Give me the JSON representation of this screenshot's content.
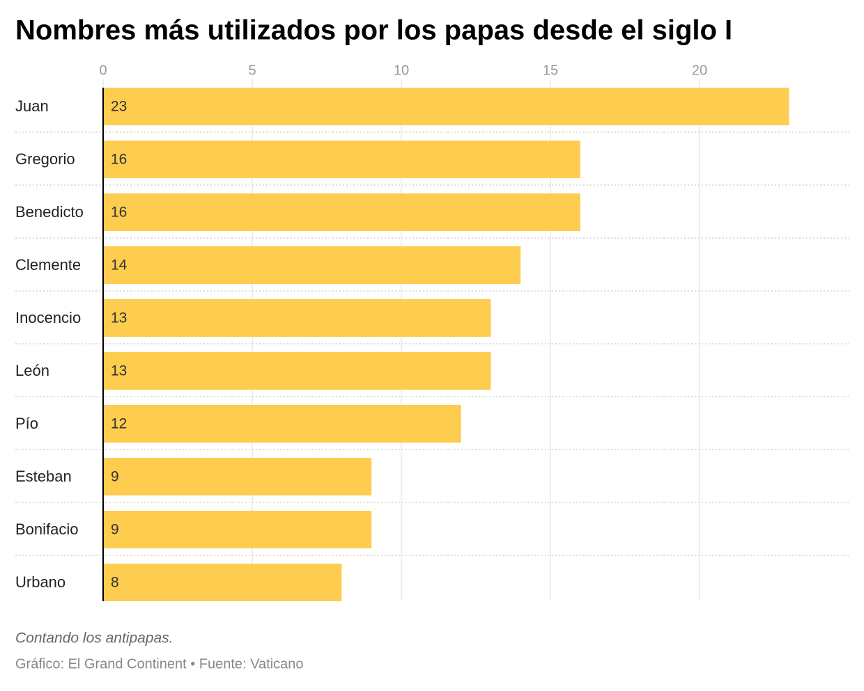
{
  "chart_data": {
    "type": "bar",
    "orientation": "horizontal",
    "title": "Nombres más utilizados por los papas desde el siglo I",
    "categories": [
      "Juan",
      "Gregorio",
      "Benedicto",
      "Clemente",
      "Inocencio",
      "León",
      "Pío",
      "Esteban",
      "Bonifacio",
      "Urbano"
    ],
    "values": [
      23,
      16,
      16,
      14,
      13,
      13,
      12,
      9,
      9,
      8
    ],
    "color": "#fecc4e",
    "xlim": [
      0,
      25
    ],
    "xticks": [
      0,
      5,
      10,
      15,
      20
    ],
    "grid": true,
    "note": "Contando los antipapas.",
    "source": "Gráfico: El Grand Continent • Fuente: Vaticano"
  }
}
